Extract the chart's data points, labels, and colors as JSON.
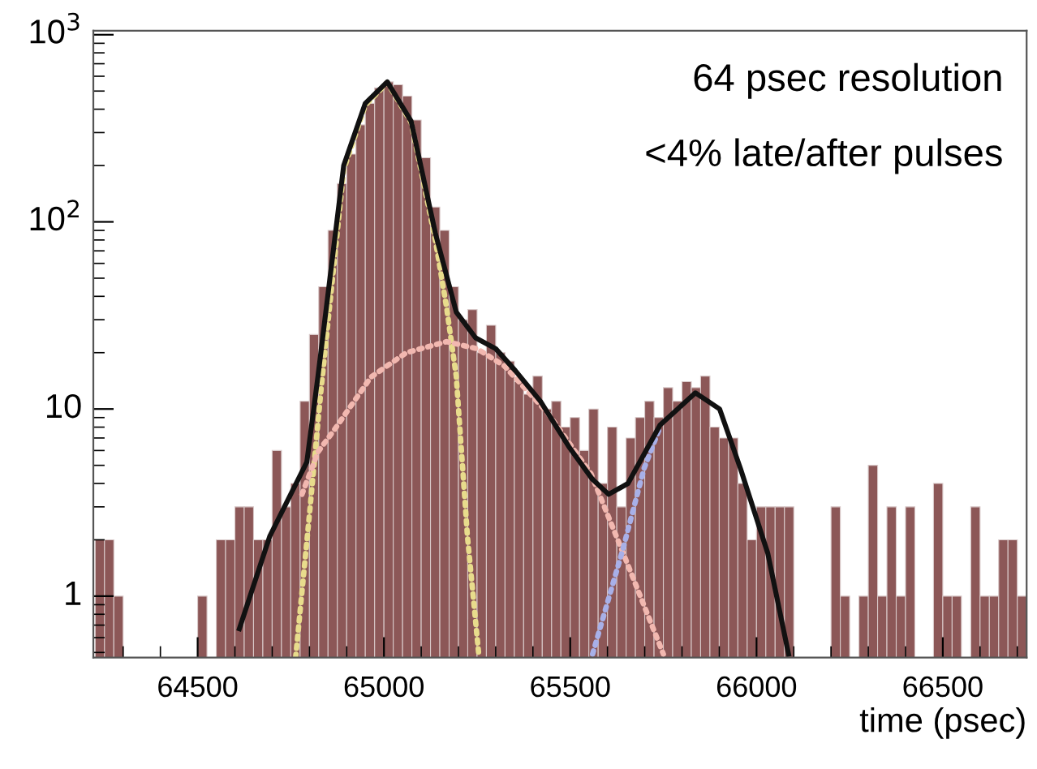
{
  "chart_data": {
    "type": "histogram",
    "xlabel": "time (psec)",
    "annotations": [
      "64 psec resolution",
      "<4% late/after pulses"
    ],
    "bins": [
      64225,
      64250,
      64275,
      64300,
      64325,
      64350,
      64375,
      64400,
      64425,
      64450,
      64475,
      64500,
      64525,
      64550,
      64575,
      64600,
      64625,
      64650,
      64675,
      64700,
      64725,
      64750,
      64775,
      64800,
      64825,
      64850,
      64875,
      64900,
      64925,
      64950,
      64975,
      65000,
      65025,
      65050,
      65075,
      65100,
      65125,
      65150,
      65175,
      65200,
      65225,
      65250,
      65275,
      65300,
      65325,
      65350,
      65375,
      65400,
      65425,
      65450,
      65475,
      65500,
      65525,
      65550,
      65575,
      65600,
      65625,
      65650,
      65675,
      65700,
      65725,
      65750,
      65775,
      65800,
      65825,
      65850,
      65875,
      65900,
      65925,
      65950,
      65975,
      66000,
      66025,
      66050,
      66075,
      66100,
      66125,
      66150,
      66175,
      66200,
      66225,
      66250,
      66275,
      66300,
      66325,
      66350,
      66375,
      66400,
      66425,
      66450,
      66475,
      66500,
      66525,
      66550,
      66575,
      66600,
      66625,
      66650,
      66675,
      66700,
      66725
    ],
    "values": [
      2,
      2,
      1,
      null,
      null,
      null,
      null,
      null,
      null,
      null,
      null,
      1,
      null,
      2,
      2,
      3,
      3,
      2,
      2,
      6,
      3,
      4,
      11,
      25,
      45,
      90,
      160,
      230,
      330,
      430,
      520,
      560,
      540,
      470,
      350,
      220,
      120,
      90,
      45,
      30,
      34,
      20,
      28,
      20,
      18,
      14,
      12,
      15,
      10,
      11,
      8,
      9,
      6,
      10,
      4,
      8,
      3,
      7,
      9,
      11,
      9,
      13,
      11,
      14,
      13,
      15,
      8,
      7,
      7,
      4,
      2,
      3,
      3,
      3,
      3,
      null,
      null,
      null,
      null,
      3,
      1,
      null,
      1,
      5,
      1,
      3,
      1,
      3,
      null,
      null,
      4,
      1,
      1,
      null,
      3,
      1,
      1,
      2,
      2,
      1
    ],
    "color": "#8c5757",
    "series": [
      {
        "type": "line",
        "color": "#e8dc8c",
        "line_style": "dotted",
        "x": [
          64763,
          64802,
          64830,
          64892,
          64950,
          65009,
          65073,
          65138,
          65168,
          65194,
          65224,
          65254
        ],
        "values": [
          0.47,
          3,
          12,
          190,
          420,
          555,
          340,
          80,
          35,
          15,
          2.1,
          0.5
        ]
      },
      {
        "type": "line",
        "color": "#f2b8b0",
        "line_style": "dotted",
        "x": [
          64780,
          64823,
          64866,
          64965,
          65060,
          65168,
          65250,
          65323,
          65440,
          65556,
          65642,
          65750
        ],
        "values": [
          3.5,
          5.9,
          7.7,
          14.8,
          20,
          22.9,
          21,
          17,
          9.5,
          4.5,
          1.7,
          0.49
        ]
      },
      {
        "type": "line",
        "color": "#a8b0e8",
        "line_style": "dotted",
        "x": [
          65560,
          65642,
          65698,
          65741
        ],
        "values": [
          0.49,
          1.8,
          4.8,
          8
        ]
      },
      {
        "type": "line",
        "color": "#111111",
        "line_style": "solid",
        "x": [
          64612,
          64694,
          64793,
          64823,
          64892,
          64950,
          65009,
          65073,
          65138,
          65194,
          65246,
          65300,
          65353,
          65420,
          65496,
          65560,
          65603,
          65655,
          65741,
          65836,
          65901,
          65957,
          66030,
          66086
        ],
        "values": [
          0.67,
          2.1,
          5.2,
          15,
          200,
          430,
          560,
          345,
          87,
          33,
          24,
          21,
          16,
          11,
          6.3,
          4.2,
          3.5,
          4,
          8.2,
          12.2,
          10,
          4.8,
          1.7,
          0.49
        ]
      }
    ],
    "xlim": [
      64220,
      66725
    ],
    "xticks": [
      64500,
      65000,
      65500,
      66000,
      66500
    ],
    "log": "y",
    "ylim": [
      0.47,
      1050
    ],
    "yticks": [
      1,
      10,
      {
        "value": 100,
        "label": "10$^{2}$"
      },
      {
        "value": 1000,
        "label": "10$^{3}$"
      }
    ],
    "grid": false
  }
}
